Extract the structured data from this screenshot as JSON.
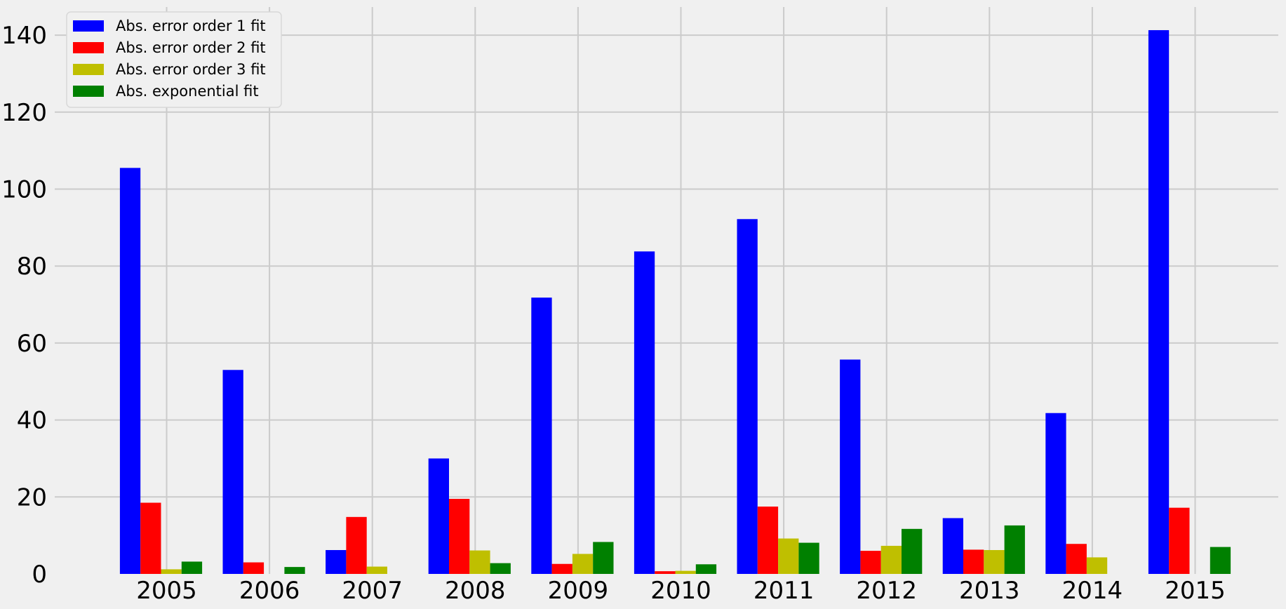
{
  "chart_data": {
    "type": "bar",
    "title": "",
    "xlabel": "",
    "ylabel": "",
    "categories": [
      "2005",
      "2006",
      "2007",
      "2008",
      "2009",
      "2010",
      "2011",
      "2012",
      "2013",
      "2014",
      "2015"
    ],
    "ylim": [
      0,
      146
    ],
    "yticks": [
      0,
      20,
      40,
      60,
      80,
      100,
      120,
      140
    ],
    "grid": true,
    "legend_position": "top-left",
    "background": "#f0f0f0",
    "grid_color": "#cbcbcb",
    "series": [
      {
        "name": "Abs. error order 1 fit",
        "color": "#0000ff",
        "values": [
          105.5,
          53.0,
          6.2,
          30.0,
          71.8,
          83.8,
          92.2,
          55.7,
          14.5,
          41.8,
          141.3
        ]
      },
      {
        "name": "Abs. error order 2 fit",
        "color": "#ff0000",
        "values": [
          18.5,
          3.0,
          14.8,
          19.5,
          2.6,
          0.7,
          17.5,
          6.0,
          6.3,
          7.8,
          17.2
        ]
      },
      {
        "name": "Abs. error order 3 fit",
        "color": "#bfbf00",
        "values": [
          1.2,
          0.0,
          1.9,
          6.1,
          5.2,
          0.8,
          9.2,
          7.3,
          6.2,
          4.3,
          0.0
        ]
      },
      {
        "name": "Abs. exponential fit",
        "color": "#008000",
        "values": [
          3.2,
          1.8,
          0.0,
          2.8,
          8.3,
          2.5,
          8.1,
          11.7,
          12.6,
          0.0,
          7.0
        ]
      }
    ]
  }
}
